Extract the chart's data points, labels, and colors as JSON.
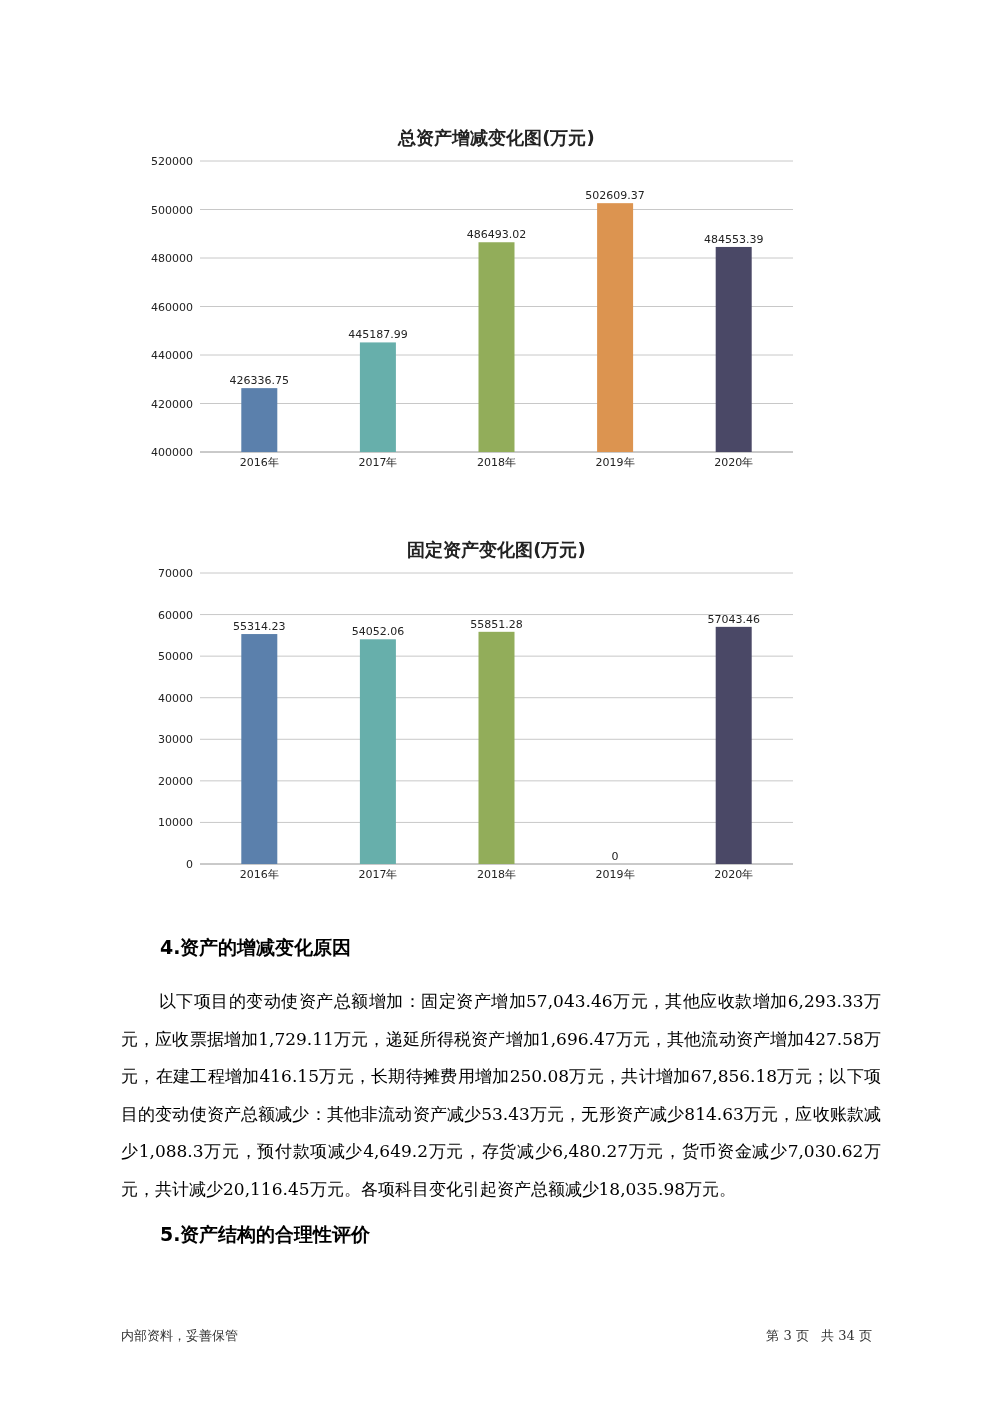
{
  "chart_data": [
    {
      "type": "bar",
      "title": "总资产增减变化图(万元)",
      "categories": [
        "2016年",
        "2017年",
        "2018年",
        "2019年",
        "2020年"
      ],
      "values": [
        426336.75,
        445187.99,
        486493.02,
        502609.37,
        484553.39
      ],
      "colors": [
        "#5b80ac",
        "#67afab",
        "#92ad5a",
        "#dc9450",
        "#4a4866"
      ],
      "ylim": [
        400000,
        520000
      ],
      "yticks": [
        400000,
        420000,
        440000,
        460000,
        480000,
        500000,
        520000
      ],
      "grid": "y",
      "data_labels": true
    },
    {
      "type": "bar",
      "title": "固定资产变化图(万元)",
      "categories": [
        "2016年",
        "2017年",
        "2018年",
        "2019年",
        "2020年"
      ],
      "values": [
        55314.23,
        54052.06,
        55851.28,
        0,
        57043.46
      ],
      "colors": [
        "#5b80ac",
        "#67afab",
        "#92ad5a",
        "#dc9450",
        "#4a4866"
      ],
      "ylim": [
        0,
        70000
      ],
      "yticks": [
        0,
        10000,
        20000,
        30000,
        40000,
        50000,
        60000,
        70000
      ],
      "grid": "y",
      "data_labels": true,
      "annotations": [
        "4.资产的增减变化原因",
        "以下项目的变动使资产总额增加：固定资产增加57,043.46万元，其他应收款增加6,293.33万元，应收票据增加1,729.11万元，递延所得税资产增加1,696.47万元，其他流动资产增加427.58万元，在建工程增加416.15万元，长期待摊费用增加250.08万元，共计增加67,856.18万元；以下项目的变动使资产总额减少：其他非流动资产减少53.43万元，无形资产减少814.63万元，应收账款减少1,088.3万元，预付款项减少4,649.2万元，存货减少6,480.27万元，货币资金减少7,030.62万元，共计减少20,116.45万元。各项科目变化引起资产总额减少18,035.98万元。",
        "5.资产结构的合理性评价",
        "内部资料，妥善保管",
        "第 3 页   共 34 页"
      ]
    }
  ]
}
